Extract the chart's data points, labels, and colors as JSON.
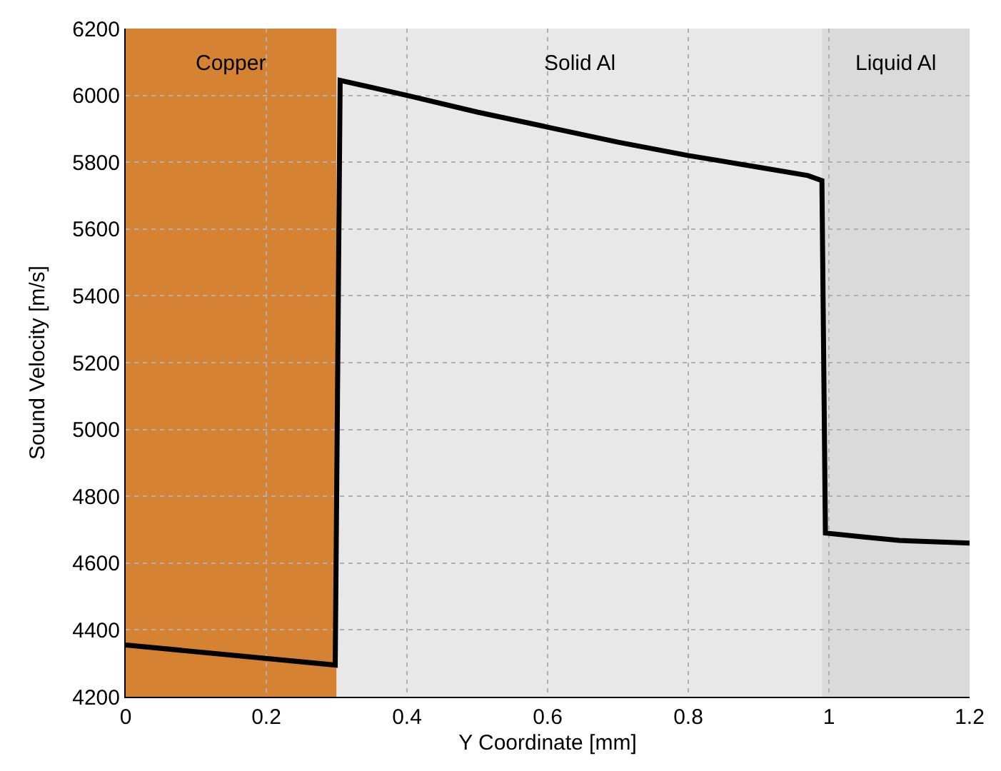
{
  "chart_data": {
    "type": "line",
    "xlabel": "Y Coordinate [mm]",
    "ylabel": "Sound Velocity [m/s]",
    "x": [
      0,
      0.298,
      0.305,
      0.4,
      0.5,
      0.6,
      0.7,
      0.8,
      0.9,
      0.97,
      0.99,
      0.995,
      1.05,
      1.1,
      1.2
    ],
    "series": [
      {
        "color": "#000000",
        "values": [
          4355,
          4295,
          6045,
          6000,
          5950,
          5905,
          5860,
          5820,
          5785,
          5760,
          5745,
          4690,
          4678,
          4668,
          4660
        ]
      }
    ],
    "xlim": [
      0,
      1.2
    ],
    "xticks": [
      0,
      0.2,
      0.4,
      0.6,
      0.8,
      1,
      1.2
    ],
    "ylim": [
      4200,
      6200
    ],
    "yticks": [
      4200,
      4400,
      4600,
      4800,
      5000,
      5200,
      5400,
      5600,
      5800,
      6000,
      6200
    ],
    "grid": true,
    "line_style": "solid",
    "marker": "none",
    "bands": [
      {
        "axis": "x",
        "from": 0,
        "to": 0.3,
        "label": "Copper",
        "color": "#d58233"
      },
      {
        "axis": "x",
        "from": 0.3,
        "to": 0.99,
        "label": "Solid Al",
        "color": "#e8e8e8"
      },
      {
        "axis": "x",
        "from": 0.99,
        "to": 1.2,
        "label": "Liquid Al",
        "color": "#dadada"
      }
    ]
  }
}
